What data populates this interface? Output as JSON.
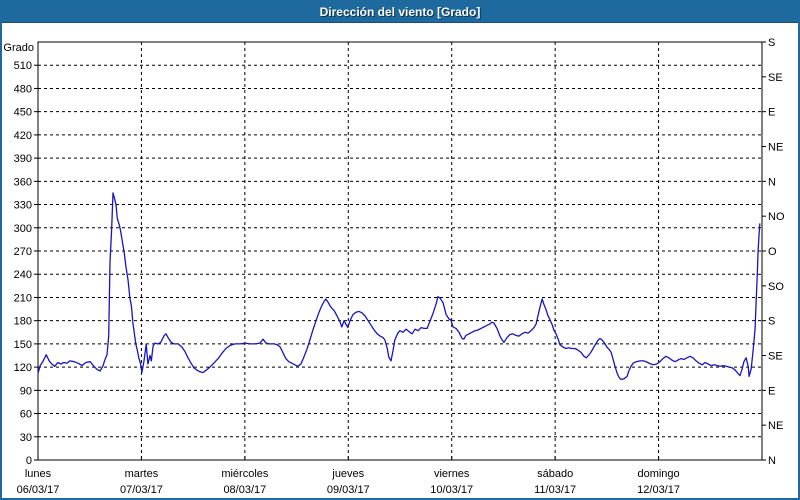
{
  "window": {
    "title": "Dirección del viento [Grado]"
  },
  "colors": {
    "titlebar_bg": "#1e6a9e",
    "titlebar_text": "#ffffff",
    "plot_background": "#ffffff",
    "grid": "#000000",
    "frame": "#000000",
    "line": "#1616c0"
  },
  "chart_data": {
    "type": "line",
    "title": "Dirección del viento [Grado]",
    "ylabel": "Grado",
    "ylim": [
      0,
      540
    ],
    "y_tick_step": 30,
    "y_ticks_left": [
      0,
      30,
      60,
      90,
      120,
      150,
      180,
      210,
      240,
      270,
      300,
      330,
      360,
      390,
      420,
      450,
      480,
      510
    ],
    "y_ticks_right": [
      {
        "deg": 0,
        "label": "N"
      },
      {
        "deg": 45,
        "label": "NE"
      },
      {
        "deg": 90,
        "label": "E"
      },
      {
        "deg": 135,
        "label": "SE"
      },
      {
        "deg": 180,
        "label": "S"
      },
      {
        "deg": 225,
        "label": "SO"
      },
      {
        "deg": 270,
        "label": "O"
      },
      {
        "deg": 315,
        "label": "NO"
      },
      {
        "deg": 360,
        "label": "N"
      },
      {
        "deg": 405,
        "label": "NE"
      },
      {
        "deg": 450,
        "label": "E"
      },
      {
        "deg": 495,
        "label": "SE"
      },
      {
        "deg": 540,
        "label": "S"
      }
    ],
    "xlim_hours": [
      0,
      168
    ],
    "x_days": [
      {
        "weekday": "lunes",
        "date": "06/03/17"
      },
      {
        "weekday": "martes",
        "date": "07/03/17"
      },
      {
        "weekday": "miércoles",
        "date": "08/03/17"
      },
      {
        "weekday": "jueves",
        "date": "09/03/17"
      },
      {
        "weekday": "viernes",
        "date": "10/03/17"
      },
      {
        "weekday": "sábado",
        "date": "11/03/17"
      },
      {
        "weekday": "domingo",
        "date": "12/03/17"
      }
    ],
    "grid": "dashed",
    "legend": "none",
    "series": [
      {
        "name": "Dirección del viento",
        "color": "#1616c0",
        "points": [
          [
            0,
            112
          ],
          [
            0.5,
            122
          ],
          [
            1.2,
            128
          ],
          [
            1.9,
            136
          ],
          [
            2.6,
            128
          ],
          [
            3.2,
            124
          ],
          [
            3.9,
            121
          ],
          [
            4.6,
            126
          ],
          [
            5.3,
            124
          ],
          [
            6,
            126
          ],
          [
            6.7,
            125
          ],
          [
            7.4,
            128
          ],
          [
            8.4,
            127
          ],
          [
            9.3,
            125
          ],
          [
            10.2,
            122
          ],
          [
            11.1,
            126
          ],
          [
            12.1,
            127
          ],
          [
            13,
            121
          ],
          [
            13.7,
            117
          ],
          [
            14.4,
            115
          ],
          [
            15.1,
            122
          ],
          [
            15.5,
            129
          ],
          [
            16,
            136
          ],
          [
            16.4,
            160
          ],
          [
            16.7,
            255
          ],
          [
            17.1,
            300
          ],
          [
            17.4,
            345
          ],
          [
            17.8,
            337
          ],
          [
            18.1,
            330
          ],
          [
            18.4,
            312
          ],
          [
            18.8,
            305
          ],
          [
            19.1,
            298
          ],
          [
            19.5,
            285
          ],
          [
            20,
            268
          ],
          [
            20.4,
            250
          ],
          [
            20.9,
            232
          ],
          [
            21.3,
            210
          ],
          [
            21.7,
            198
          ],
          [
            22,
            178
          ],
          [
            22.4,
            162
          ],
          [
            22.7,
            150
          ],
          [
            23.1,
            140
          ],
          [
            23.4,
            132
          ],
          [
            23.8,
            124
          ],
          [
            24.1,
            113
          ],
          [
            24.6,
            128
          ],
          [
            25.1,
            150
          ],
          [
            25.5,
            124
          ],
          [
            26,
            135
          ],
          [
            26.3,
            128
          ],
          [
            26.7,
            147
          ],
          [
            27.1,
            151
          ],
          [
            27.8,
            150
          ],
          [
            28.5,
            152
          ],
          [
            29.2,
            160
          ],
          [
            29.7,
            163
          ],
          [
            30.2,
            158
          ],
          [
            30.9,
            152
          ],
          [
            31.6,
            150
          ],
          [
            32.5,
            150
          ],
          [
            33.4,
            146
          ],
          [
            34.1,
            140
          ],
          [
            34.8,
            132
          ],
          [
            35.5,
            125
          ],
          [
            36.2,
            119
          ],
          [
            36.9,
            116
          ],
          [
            37.6,
            114
          ],
          [
            38.3,
            113
          ],
          [
            39,
            116
          ],
          [
            39.9,
            120
          ],
          [
            40.8,
            125
          ],
          [
            41.8,
            131
          ],
          [
            42.7,
            138
          ],
          [
            43.6,
            144
          ],
          [
            44.6,
            148
          ],
          [
            45.7,
            150
          ],
          [
            46.9,
            150
          ],
          [
            48,
            151
          ],
          [
            49.2,
            150
          ],
          [
            50.4,
            150
          ],
          [
            51.5,
            151
          ],
          [
            52.2,
            156
          ],
          [
            52.9,
            151
          ],
          [
            53.8,
            150
          ],
          [
            54.8,
            150
          ],
          [
            55.5,
            149
          ],
          [
            56.2,
            146
          ],
          [
            56.9,
            138
          ],
          [
            57.5,
            131
          ],
          [
            58.2,
            127
          ],
          [
            58.9,
            125
          ],
          [
            59.6,
            123
          ],
          [
            60.3,
            121
          ],
          [
            61,
            124
          ],
          [
            61.7,
            133
          ],
          [
            62.4,
            143
          ],
          [
            63.1,
            155
          ],
          [
            63.8,
            168
          ],
          [
            64.5,
            180
          ],
          [
            65.2,
            191
          ],
          [
            65.9,
            200
          ],
          [
            66.4,
            205
          ],
          [
            66.8,
            208
          ],
          [
            67.3,
            204
          ],
          [
            67.8,
            199
          ],
          [
            68.2,
            196
          ],
          [
            68.7,
            193
          ],
          [
            69.4,
            186
          ],
          [
            70.1,
            178
          ],
          [
            70.5,
            172
          ],
          [
            71,
            180
          ],
          [
            71.5,
            175
          ],
          [
            71.9,
            171
          ],
          [
            72.4,
            180
          ],
          [
            73.1,
            188
          ],
          [
            73.8,
            191
          ],
          [
            74.5,
            192
          ],
          [
            75.2,
            190
          ],
          [
            75.9,
            186
          ],
          [
            76.6,
            180
          ],
          [
            77.3,
            174
          ],
          [
            78,
            168
          ],
          [
            78.7,
            163
          ],
          [
            79.4,
            160
          ],
          [
            80.1,
            158
          ],
          [
            80.5,
            155
          ],
          [
            81,
            145
          ],
          [
            81.4,
            133
          ],
          [
            81.9,
            128
          ],
          [
            82.4,
            142
          ],
          [
            82.8,
            155
          ],
          [
            83.5,
            164
          ],
          [
            84,
            167
          ],
          [
            84.7,
            165
          ],
          [
            85.4,
            169
          ],
          [
            86.1,
            166
          ],
          [
            86.8,
            163
          ],
          [
            87.5,
            169
          ],
          [
            88.2,
            167
          ],
          [
            88.9,
            171
          ],
          [
            89.6,
            170
          ],
          [
            90.3,
            170
          ],
          [
            91,
            180
          ],
          [
            91.7,
            190
          ],
          [
            92.4,
            202
          ],
          [
            92.8,
            211
          ],
          [
            93.3,
            209
          ],
          [
            94,
            203
          ],
          [
            94.7,
            188
          ],
          [
            95.4,
            182
          ],
          [
            95.8,
            181
          ],
          [
            96.3,
            172
          ],
          [
            97,
            170
          ],
          [
            97.7,
            165
          ],
          [
            98.4,
            157
          ],
          [
            98.8,
            156
          ],
          [
            99.3,
            161
          ],
          [
            100,
            163
          ],
          [
            100.7,
            165
          ],
          [
            101.4,
            167
          ],
          [
            102.1,
            168
          ],
          [
            102.8,
            170
          ],
          [
            103.5,
            172
          ],
          [
            104.2,
            174
          ],
          [
            104.9,
            176
          ],
          [
            105.3,
            178
          ],
          [
            105.8,
            177
          ],
          [
            106.5,
            170
          ],
          [
            107.2,
            160
          ],
          [
            107.7,
            155
          ],
          [
            108.1,
            152
          ],
          [
            108.8,
            158
          ],
          [
            109.5,
            162
          ],
          [
            110.2,
            163
          ],
          [
            110.9,
            161
          ],
          [
            111.6,
            160
          ],
          [
            112.3,
            163
          ],
          [
            113,
            165
          ],
          [
            113.7,
            164
          ],
          [
            114.4,
            167
          ],
          [
            115.1,
            171
          ],
          [
            115.6,
            176
          ],
          [
            116,
            186
          ],
          [
            116.5,
            198
          ],
          [
            117,
            208
          ],
          [
            117.4,
            201
          ],
          [
            117.9,
            194
          ],
          [
            118.3,
            187
          ],
          [
            118.8,
            181
          ],
          [
            119.3,
            175
          ],
          [
            119.7,
            168
          ],
          [
            120.2,
            163
          ],
          [
            120.7,
            156
          ],
          [
            121.1,
            149
          ],
          [
            121.8,
            146
          ],
          [
            122.5,
            144
          ],
          [
            123.2,
            145
          ],
          [
            123.9,
            144
          ],
          [
            124.6,
            144
          ],
          [
            125.3,
            142
          ],
          [
            126,
            139
          ],
          [
            126.7,
            134
          ],
          [
            127.2,
            132
          ],
          [
            127.9,
            136
          ],
          [
            128.6,
            142
          ],
          [
            129.3,
            149
          ],
          [
            130,
            155
          ],
          [
            130.4,
            157
          ],
          [
            130.9,
            155
          ],
          [
            131.6,
            150
          ],
          [
            132,
            146
          ],
          [
            132.5,
            143
          ],
          [
            133,
            139
          ],
          [
            133.4,
            131
          ],
          [
            133.9,
            121
          ],
          [
            134.4,
            112
          ],
          [
            134.8,
            107
          ],
          [
            135.3,
            104
          ],
          [
            136,
            105
          ],
          [
            136.7,
            108
          ],
          [
            137.1,
            115
          ],
          [
            137.6,
            121
          ],
          [
            138.1,
            125
          ],
          [
            138.8,
            127
          ],
          [
            139.7,
            128
          ],
          [
            140.6,
            128
          ],
          [
            141.5,
            126
          ],
          [
            142.2,
            124
          ],
          [
            142.9,
            123
          ],
          [
            143.6,
            124
          ],
          [
            144.3,
            127
          ],
          [
            145,
            131
          ],
          [
            145.7,
            134
          ],
          [
            146.4,
            132
          ],
          [
            147.1,
            129
          ],
          [
            147.8,
            127
          ],
          [
            148.5,
            129
          ],
          [
            149.2,
            131
          ],
          [
            149.9,
            130
          ],
          [
            150.6,
            132
          ],
          [
            151.3,
            134
          ],
          [
            152,
            132
          ],
          [
            152.7,
            128
          ],
          [
            153.4,
            125
          ],
          [
            154.1,
            123
          ],
          [
            154.8,
            126
          ],
          [
            155.5,
            124
          ],
          [
            156.2,
            122
          ],
          [
            156.9,
            123
          ],
          [
            157.6,
            122
          ],
          [
            158.3,
            121
          ],
          [
            159,
            122
          ],
          [
            159.7,
            121
          ],
          [
            160.4,
            120
          ],
          [
            161.1,
            119
          ],
          [
            161.8,
            116
          ],
          [
            162.4,
            112
          ],
          [
            162.9,
            109
          ],
          [
            163.4,
            118
          ],
          [
            163.8,
            127
          ],
          [
            164.3,
            132
          ],
          [
            164.8,
            121
          ],
          [
            165,
            108
          ],
          [
            165.5,
            118
          ],
          [
            165.9,
            140
          ],
          [
            166.4,
            170
          ],
          [
            166.6,
            200
          ],
          [
            166.9,
            240
          ],
          [
            167.1,
            270
          ],
          [
            167.3,
            290
          ],
          [
            167.5,
            305
          ]
        ]
      }
    ]
  }
}
